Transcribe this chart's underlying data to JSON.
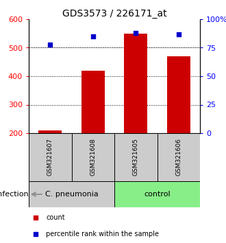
{
  "title": "GDS3573 / 226171_at",
  "samples": [
    "GSM321607",
    "GSM321608",
    "GSM321605",
    "GSM321606"
  ],
  "counts": [
    210,
    420,
    550,
    470
  ],
  "percentiles": [
    78,
    85,
    88,
    87
  ],
  "ylim_left": [
    200,
    600
  ],
  "ylim_right": [
    0,
    100
  ],
  "yticks_left": [
    200,
    300,
    400,
    500,
    600
  ],
  "yticks_right": [
    0,
    25,
    50,
    75,
    100
  ],
  "ytick_labels_right": [
    "0",
    "25",
    "50",
    "75",
    "100%"
  ],
  "bar_color": "#cc0000",
  "dot_color": "#0000cc",
  "bar_bottom": 200,
  "groups": [
    {
      "label": "C. pneumonia",
      "indices": [
        0,
        1
      ],
      "color": "#cccccc"
    },
    {
      "label": "control",
      "indices": [
        2,
        3
      ],
      "color": "#88ee88"
    }
  ],
  "infection_label": "infection",
  "legend_count_label": "count",
  "legend_pct_label": "percentile rank within the sample",
  "grid_yticks": [
    300,
    400,
    500
  ],
  "title_fontsize": 10,
  "tick_label_fontsize": 8,
  "sample_label_fontsize": 6.5,
  "group_label_fontsize": 8,
  "legend_fontsize": 7,
  "infection_fontsize": 8
}
